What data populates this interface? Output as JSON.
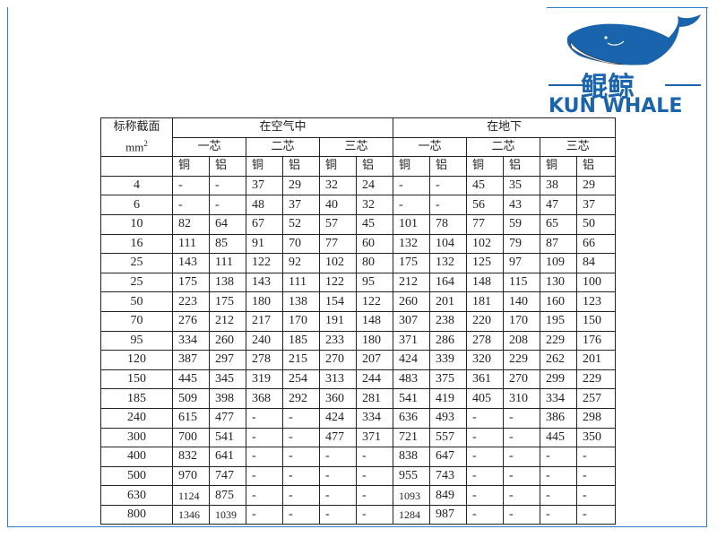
{
  "brand": {
    "name_cn": "鲲鲸",
    "name_en": "KUN WHALE",
    "color": "#1a64ad",
    "logo_icon": "whale-icon"
  },
  "table": {
    "corner_label": "标称截面",
    "corner_unit": "mm",
    "corner_unit_sup": "2",
    "groups": [
      "在空气中",
      "在地下"
    ],
    "cores": [
      "一芯",
      "二芯",
      "三芯",
      "一芯",
      "二芯",
      "三芯"
    ],
    "materials": [
      "铜",
      "铝",
      "铜",
      "铝",
      "铜",
      "铝",
      "铜",
      "铝",
      "铜",
      "铝",
      "铜",
      "铝"
    ],
    "rows": [
      [
        "4",
        "-",
        "-",
        "37",
        "29",
        "32",
        "24",
        "-",
        "-",
        "45",
        "35",
        "38",
        "29"
      ],
      [
        "6",
        "-",
        "-",
        "48",
        "37",
        "40",
        "32",
        "-",
        "-",
        "56",
        "43",
        "47",
        "37"
      ],
      [
        "10",
        "82",
        "64",
        "67",
        "52",
        "57",
        "45",
        "101",
        "78",
        "77",
        "59",
        "65",
        "50"
      ],
      [
        "16",
        "111",
        "85",
        "91",
        "70",
        "77",
        "60",
        "132",
        "104",
        "102",
        "79",
        "87",
        "66"
      ],
      [
        "25",
        "143",
        "111",
        "122",
        "92",
        "102",
        "80",
        "175",
        "132",
        "125",
        "97",
        "109",
        "84"
      ],
      [
        "25",
        "175",
        "138",
        "143",
        "111",
        "122",
        "95",
        "212",
        "164",
        "148",
        "115",
        "130",
        "100"
      ],
      [
        "50",
        "223",
        "175",
        "180",
        "138",
        "154",
        "122",
        "260",
        "201",
        "181",
        "140",
        "160",
        "123"
      ],
      [
        "70",
        "276",
        "212",
        "217",
        "170",
        "191",
        "148",
        "307",
        "238",
        "220",
        "170",
        "195",
        "150"
      ],
      [
        "95",
        "334",
        "260",
        "240",
        "185",
        "233",
        "180",
        "371",
        "286",
        "278",
        "208",
        "229",
        "176"
      ],
      [
        "120",
        "387",
        "297",
        "278",
        "215",
        "270",
        "207",
        "424",
        "339",
        "320",
        "229",
        "262",
        "201"
      ],
      [
        "150",
        "445",
        "345",
        "319",
        "254",
        "313",
        "244",
        "483",
        "375",
        "361",
        "270",
        "299",
        "229"
      ],
      [
        "185",
        "509",
        "398",
        "368",
        "292",
        "360",
        "281",
        "541",
        "419",
        "405",
        "310",
        "334",
        "257"
      ],
      [
        "240",
        "615",
        "477",
        "-",
        "-",
        "424",
        "334",
        "636",
        "493",
        "-",
        "-",
        "386",
        "298"
      ],
      [
        "300",
        "700",
        "541",
        "-",
        "-",
        "477",
        "371",
        "721",
        "557",
        "-",
        "-",
        "445",
        "350"
      ],
      [
        "400",
        "832",
        "641",
        "-",
        "-",
        "-",
        "-",
        "838",
        "647",
        "-",
        "-",
        "-",
        "-"
      ],
      [
        "500",
        "970",
        "747",
        "-",
        "-",
        "-",
        "-",
        "955",
        "743",
        "-",
        "-",
        "-",
        "-"
      ],
      [
        "630",
        "1124",
        "875",
        "-",
        "-",
        "-",
        "-",
        "1093",
        "849",
        "-",
        "-",
        "-",
        "-"
      ],
      [
        "800",
        "1346",
        "1039",
        "-",
        "-",
        "-",
        "-",
        "1284",
        "987",
        "-",
        "-",
        "-",
        "-"
      ]
    ]
  }
}
